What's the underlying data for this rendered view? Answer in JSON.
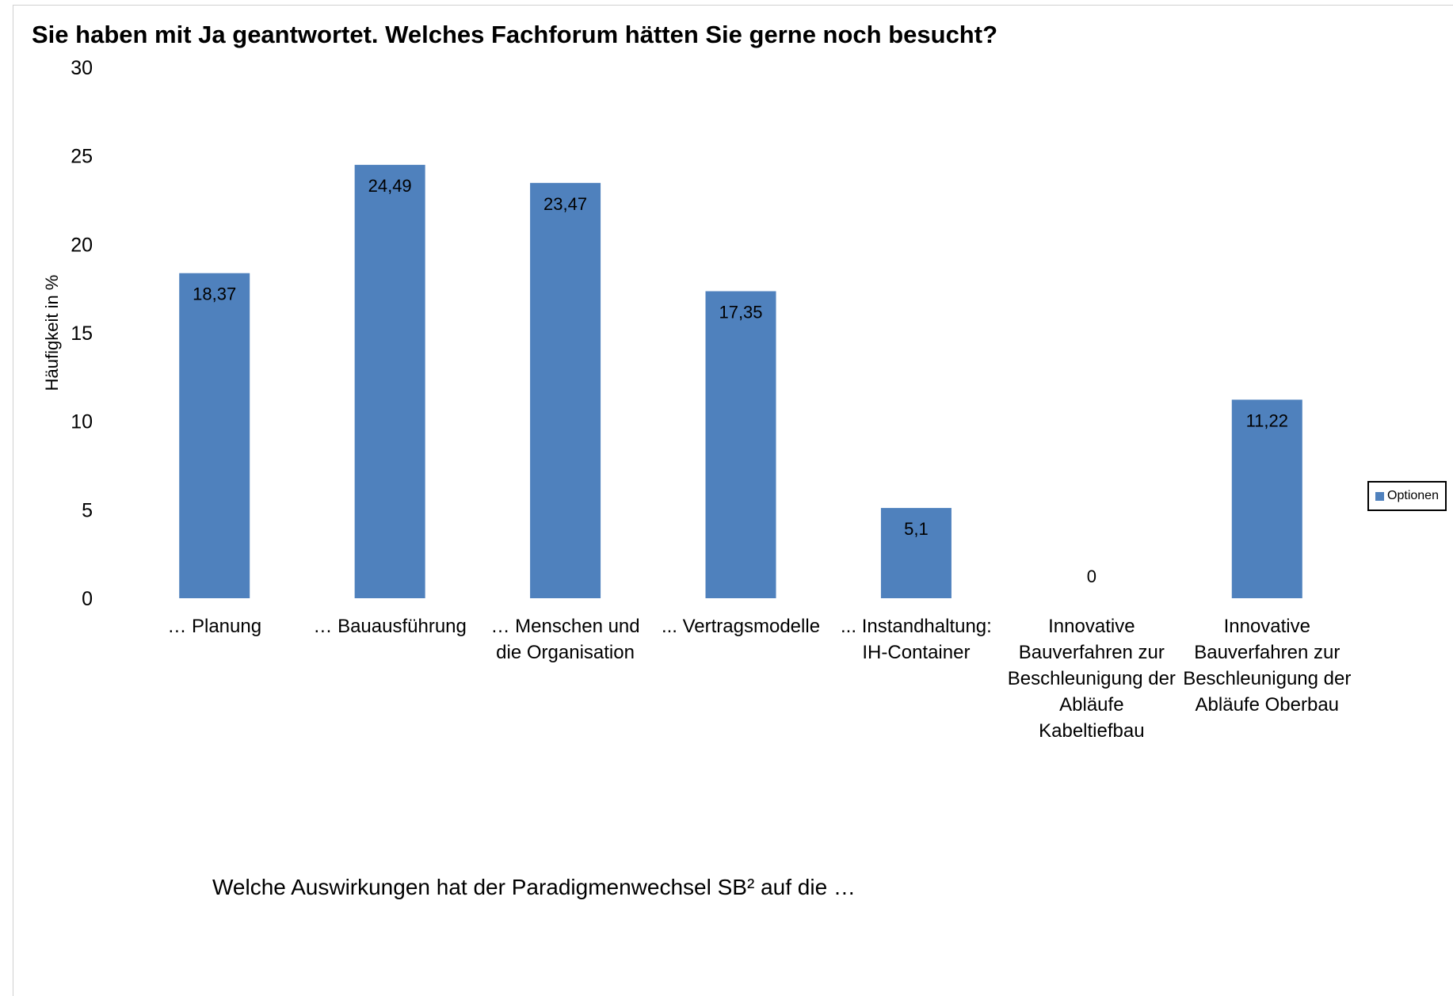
{
  "chart_data": {
    "type": "bar",
    "title": "Sie haben mit Ja geantwortet. Welches Fachforum hätten Sie gerne noch besucht?",
    "ylabel": "Häufigkeit in %",
    "xlabel": "Welche Auswirkungen hat der Paradigmenwechsel SB² auf die …",
    "ylim": [
      0,
      30
    ],
    "yticks": [
      0,
      5,
      10,
      15,
      20,
      25,
      30
    ],
    "grid": false,
    "legend_position": "right",
    "bar_color": "#4f81bd",
    "categories": [
      "… Planung",
      "… Bauausführung",
      "… Menschen und die Organisation",
      "... Vertragsmodelle",
      "... Instandhaltung: IH-Container",
      "Innovative Bauverfahren zur Beschleunigung der Abläufe Kabeltiefbau",
      "Innovative Bauverfahren zur Beschleunigung der Abläufe Oberbau"
    ],
    "category_lines": [
      [
        "… Planung"
      ],
      [
        "… Bauausführung"
      ],
      [
        "… Menschen und",
        "die Organisation"
      ],
      [
        "... Vertragsmodelle"
      ],
      [
        "... Instandhaltung:",
        "IH-Container"
      ],
      [
        "Innovative",
        "Bauverfahren zur",
        "Beschleunigung der",
        "Abläufe",
        "Kabeltiefbau"
      ],
      [
        "Innovative",
        "Bauverfahren zur",
        "Beschleunigung der",
        "Abläufe Oberbau"
      ]
    ],
    "series": [
      {
        "name": "Optionen",
        "values": [
          18.37,
          24.49,
          23.47,
          17.35,
          5.1,
          0,
          11.22
        ],
        "data_labels": [
          "18,37",
          "24,49",
          "23,47",
          "17,35",
          "5,1",
          "0",
          "11,22"
        ]
      }
    ]
  }
}
